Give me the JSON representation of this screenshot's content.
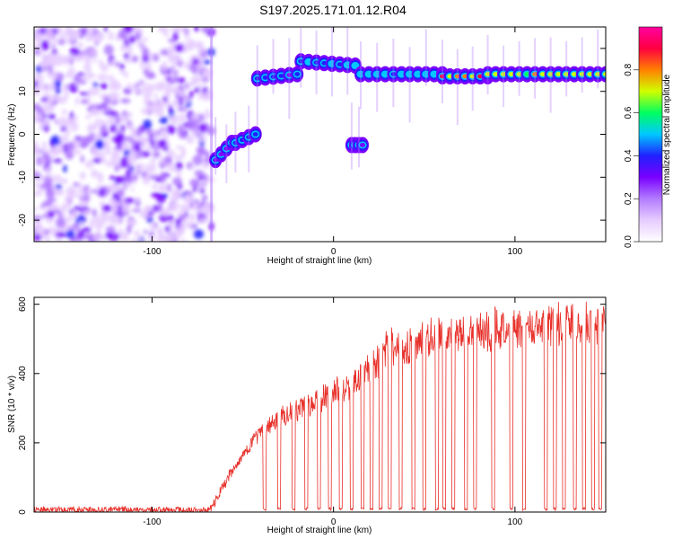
{
  "title": "S197.2025.171.01.12.R04",
  "chart_data": [
    {
      "type": "heatmap",
      "xlabel": "Height of straight line (km)",
      "ylabel": "Frequency (Hz)",
      "xlim": [
        -165,
        150
      ],
      "ylim": [
        -25,
        25
      ],
      "x_ticks": [
        -100,
        0,
        100
      ],
      "y_ticks": [
        -20,
        -10,
        0,
        10,
        20
      ],
      "x_tick_labels": [
        "-100",
        "0",
        "100"
      ],
      "y_tick_labels": [
        "-20",
        "-10",
        "0",
        "10",
        "20"
      ],
      "colorbar": {
        "label": "Normalized spectral amplitude",
        "range": [
          0,
          1
        ],
        "ticks": [
          0,
          0.2,
          0.4,
          0.6,
          0.8
        ],
        "tick_labels": [
          "0.0",
          "0.2",
          "0.4",
          "0.6",
          "0.8"
        ],
        "colormap": [
          "#ffffff",
          "#e6ccff",
          "#b27cff",
          "#7a00ff",
          "#2020ff",
          "#00c8ff",
          "#00ff60",
          "#d0ff00",
          "#ff8000",
          "#ff0040",
          "#ff00a0"
        ]
      },
      "noise_region": {
        "x_range": [
          -165,
          -67
        ],
        "y_range": [
          -25,
          25
        ]
      },
      "tone_segments": [
        {
          "x": [
            -65,
            -56
          ],
          "y": [
            -6,
            -2
          ],
          "amplitude": 0.35
        },
        {
          "x": [
            -54,
            -43
          ],
          "y": [
            -2,
            0
          ],
          "amplitude": 0.45
        },
        {
          "x": [
            -42,
            -20
          ],
          "y": [
            13,
            14
          ],
          "amplitude": 0.4
        },
        {
          "x": [
            -18,
            12
          ],
          "y": [
            17,
            16
          ],
          "amplitude": 0.5
        },
        {
          "x": [
            10,
            16
          ],
          "y": [
            -2.5,
            -2.5
          ],
          "amplitude": 0.3
        },
        {
          "x": [
            15,
            60
          ],
          "y": [
            14,
            14
          ],
          "amplitude": 0.55
        },
        {
          "x": [
            60,
            85
          ],
          "y": [
            13.5,
            13.5
          ],
          "amplitude": 0.95
        },
        {
          "x": [
            85,
            150
          ],
          "y": [
            14,
            14
          ],
          "amplitude": 0.8
        }
      ]
    },
    {
      "type": "line",
      "xlabel": "Height of straight line (km)",
      "ylabel": "SNR (10 * v/v)",
      "xlim": [
        -165,
        150
      ],
      "ylim": [
        0,
        620
      ],
      "x_ticks": [
        -100,
        0,
        100
      ],
      "y_ticks": [
        0,
        200,
        400,
        600
      ],
      "x_tick_labels": [
        "-100",
        "0",
        "100"
      ],
      "y_tick_labels": [
        "0",
        "200",
        "400",
        "600"
      ],
      "color": "#e8302a",
      "envelope": {
        "x": [
          -165,
          -68,
          -62,
          -55,
          -45,
          -38,
          -30,
          -20,
          -10,
          0,
          10,
          20,
          30,
          45,
          60,
          80,
          100,
          120,
          150
        ],
        "y": [
          15,
          15,
          80,
          140,
          220,
          260,
          300,
          320,
          350,
          380,
          410,
          450,
          520,
          540,
          560,
          580,
          590,
          595,
          600
        ]
      },
      "dropouts_x": [
        -38,
        -30,
        -22,
        -15,
        -8,
        -2,
        4,
        10,
        16,
        21,
        26,
        31,
        37,
        44,
        50,
        57,
        61,
        66,
        73,
        78,
        88,
        98,
        105,
        117,
        122,
        127,
        133,
        138,
        143,
        147
      ],
      "dropout_level": 5
    }
  ]
}
